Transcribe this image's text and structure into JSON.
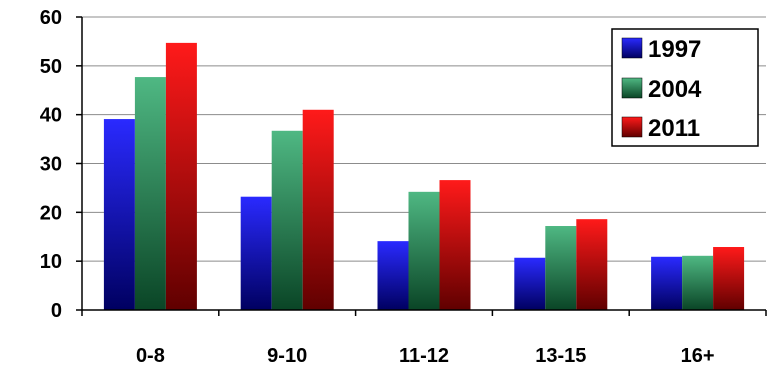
{
  "chart_data": {
    "type": "bar",
    "categories": [
      "0-8",
      "9-10",
      "11-12",
      "13-15",
      "16+"
    ],
    "series": [
      {
        "name": "1997",
        "values": [
          39.1,
          23.2,
          14.1,
          10.7,
          10.9
        ],
        "color_top": "#2a2aff",
        "color_bottom": "#000060"
      },
      {
        "name": "2004",
        "values": [
          47.7,
          36.7,
          24.2,
          17.2,
          11.1
        ],
        "color_top": "#4fb883",
        "color_bottom": "#0a4526"
      },
      {
        "name": "2011",
        "values": [
          54.7,
          41.0,
          26.6,
          18.6,
          12.9
        ],
        "color_top": "#ff1a1a",
        "color_bottom": "#600000"
      }
    ],
    "ylim": [
      0,
      60
    ],
    "yticks": [
      0,
      10,
      20,
      30,
      40,
      50,
      60
    ],
    "grid": true,
    "legend": "top-right"
  },
  "colors": {
    "gridline": "#8c8c8c",
    "axis": "#000000",
    "legend_border": "#000000"
  }
}
